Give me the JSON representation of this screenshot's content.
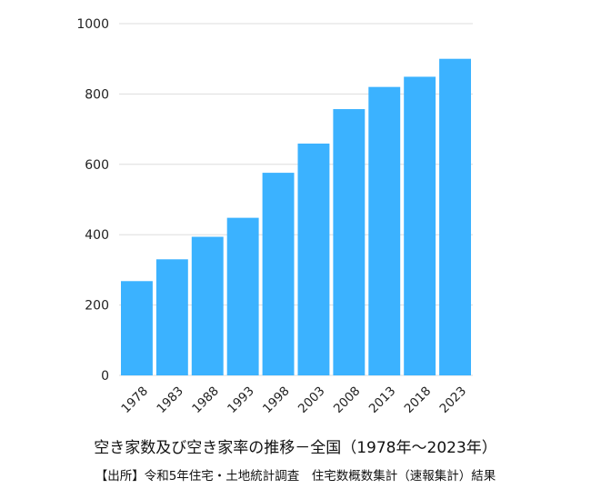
{
  "chart_data": {
    "type": "bar",
    "categories": [
      "1978",
      "1983",
      "1988",
      "1993",
      "1998",
      "2003",
      "2008",
      "2013",
      "2018",
      "2023"
    ],
    "series": [
      {
        "values": [
          268,
          330,
          394,
          448,
          576,
          659,
          757,
          820,
          849,
          900
        ]
      }
    ],
    "ylim": [
      0,
      1000
    ],
    "yticks": [
      0,
      200,
      400,
      600,
      800,
      1000
    ],
    "grid": true,
    "bar_color": "#3bb2ff",
    "title": "空き家数及び空き家率の推移－全国（1978年～2023年）"
  },
  "source_text": "【出所】令和5年住宅・土地統計調査　住宅数概数集計（速報集計）結果"
}
